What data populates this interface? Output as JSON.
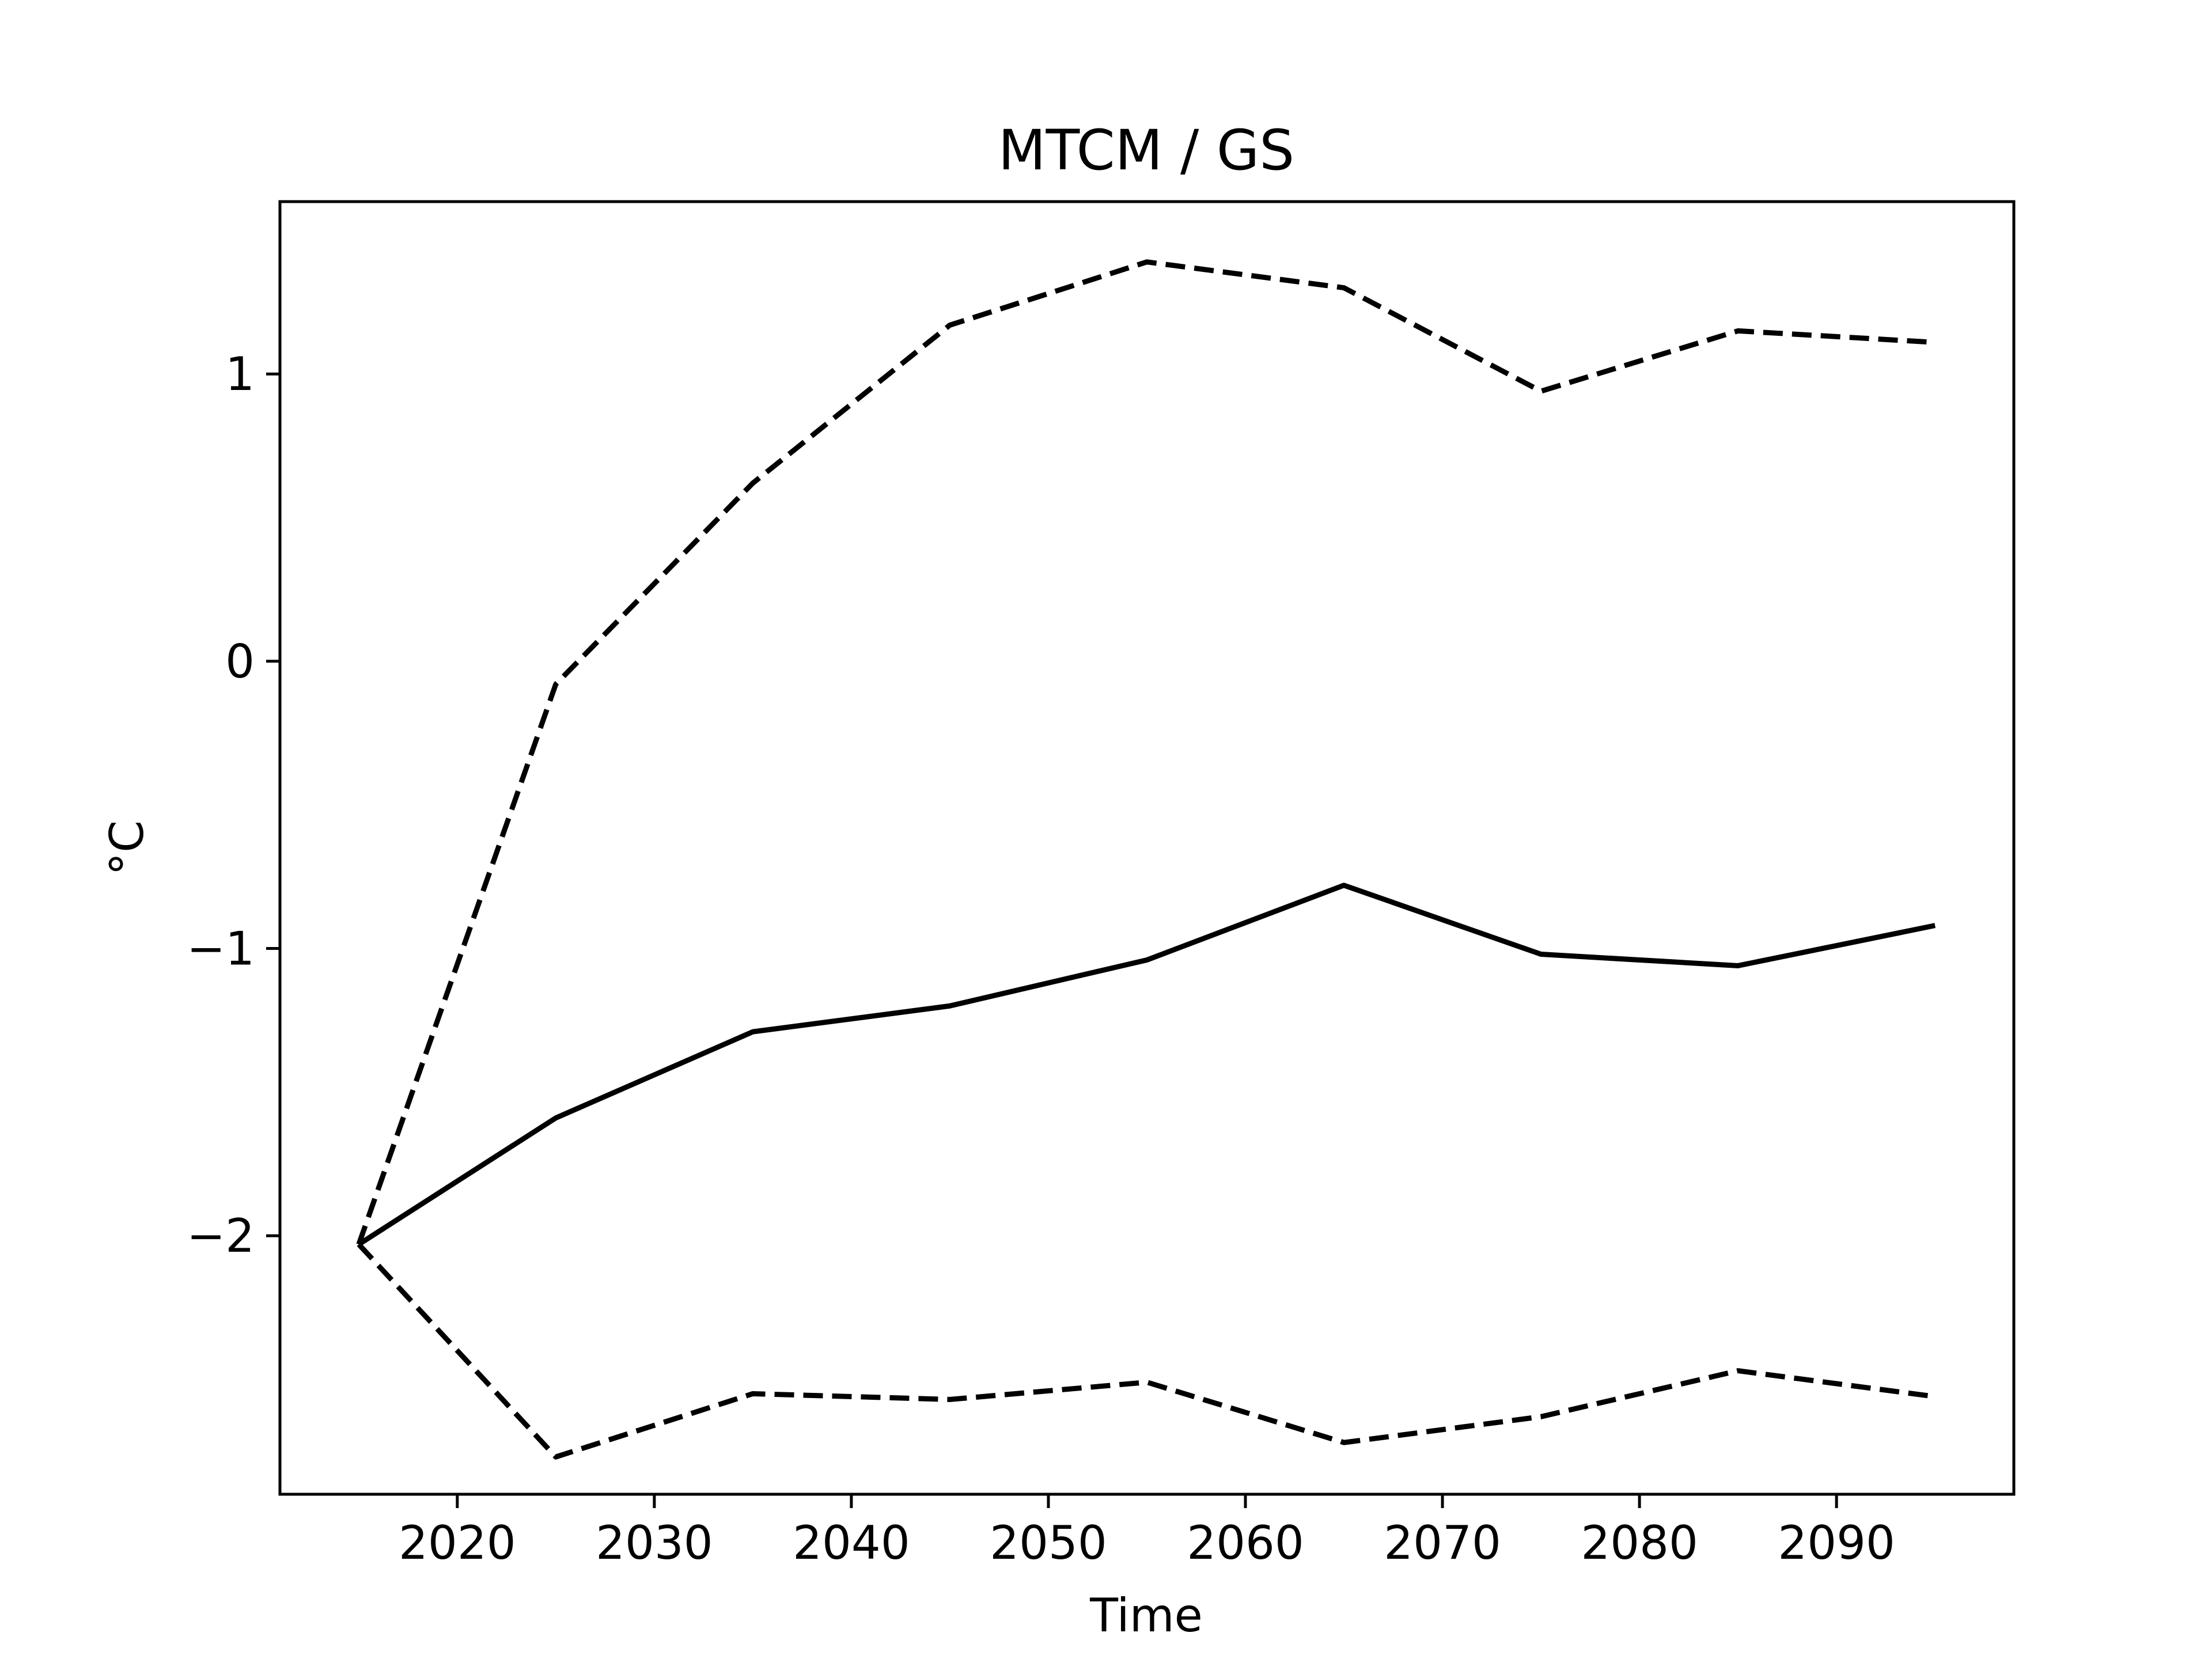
{
  "chart_data": {
    "type": "line",
    "title": "MTCM / GS",
    "xlabel": "Time",
    "ylabel": "°C",
    "xlim": [
      2011,
      2099
    ],
    "ylim": [
      -2.9,
      1.6
    ],
    "x_ticks": [
      2020,
      2030,
      2040,
      2050,
      2060,
      2070,
      2080,
      2090
    ],
    "y_ticks": [
      -2,
      -1,
      0,
      1
    ],
    "y_tick_labels": [
      "−2",
      "−1",
      "0",
      "1"
    ],
    "grid": false,
    "legend": "none",
    "x": [
      2015,
      2025,
      2035,
      2045,
      2055,
      2065,
      2075,
      2085,
      2095
    ],
    "series": [
      {
        "style": "dashed",
        "color": "#000000",
        "values": [
          -2.03,
          -0.08,
          0.62,
          1.17,
          1.39,
          1.3,
          0.94,
          1.15,
          1.11
        ]
      },
      {
        "style": "solid",
        "color": "#000000",
        "values": [
          -2.03,
          -1.59,
          -1.29,
          -1.2,
          -1.04,
          -0.78,
          -1.02,
          -1.06,
          -0.92
        ]
      },
      {
        "style": "dashed",
        "color": "#000000",
        "values": [
          -2.03,
          -2.77,
          -2.55,
          -2.57,
          -2.51,
          -2.72,
          -2.63,
          -2.47,
          -2.56
        ]
      }
    ]
  }
}
